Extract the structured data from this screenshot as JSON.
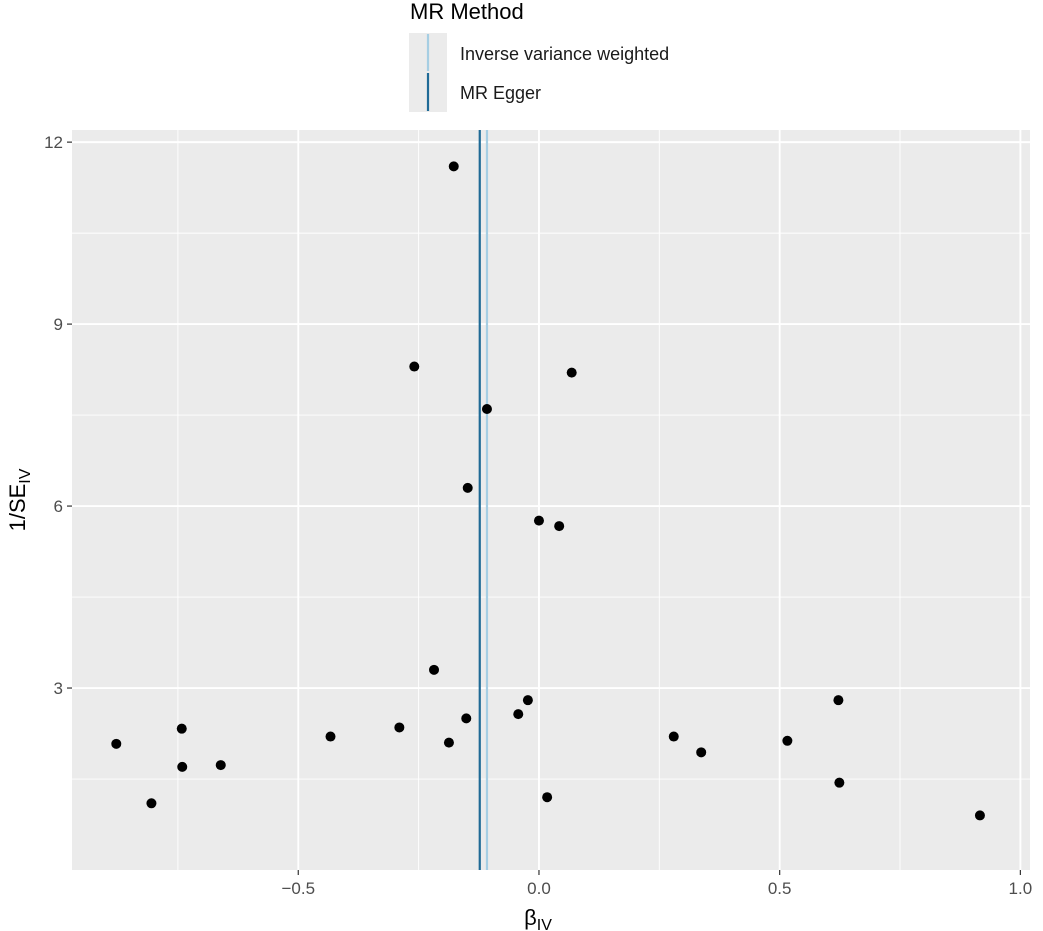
{
  "legend": {
    "title": "MR Method",
    "entries": [
      {
        "label": "Inverse variance weighted",
        "color": "#a6cee3"
      },
      {
        "label": "MR Egger",
        "color": "#1f6a96"
      }
    ]
  },
  "chart_data": {
    "type": "scatter",
    "xlabel_main": "β",
    "xlabel_sub": "IV",
    "ylabel_main": "1/SE",
    "ylabel_sub": "IV",
    "xlim": [
      -0.97,
      1.02
    ],
    "ylim": [
      0.0,
      12.2
    ],
    "xticks": [
      -0.5,
      0.0,
      0.5,
      1.0
    ],
    "xtick_labels": [
      "−0.5",
      "0.0",
      "0.5",
      "1.0"
    ],
    "yticks": [
      3,
      6,
      9,
      12
    ],
    "ytick_labels": [
      "3",
      "6",
      "9",
      "12"
    ],
    "grid": true,
    "legend_position": "top",
    "vlines": [
      {
        "name": "Inverse variance weighted",
        "x": -0.108,
        "color": "#a6cee3"
      },
      {
        "name": "MR Egger",
        "x": -0.123,
        "color": "#1f6a96"
      }
    ],
    "points": [
      {
        "x": -0.177,
        "y": 11.6
      },
      {
        "x": -0.259,
        "y": 8.3
      },
      {
        "x": 0.068,
        "y": 8.2
      },
      {
        "x": -0.108,
        "y": 7.6
      },
      {
        "x": -0.148,
        "y": 6.3
      },
      {
        "x": 0.0,
        "y": 5.76
      },
      {
        "x": 0.042,
        "y": 5.67
      },
      {
        "x": -0.218,
        "y": 3.3
      },
      {
        "x": -0.023,
        "y": 2.8
      },
      {
        "x": 0.622,
        "y": 2.8
      },
      {
        "x": -0.043,
        "y": 2.57
      },
      {
        "x": -0.151,
        "y": 2.5
      },
      {
        "x": -0.742,
        "y": 2.33
      },
      {
        "x": -0.29,
        "y": 2.35
      },
      {
        "x": -0.433,
        "y": 2.2
      },
      {
        "x": 0.28,
        "y": 2.2
      },
      {
        "x": -0.878,
        "y": 2.08
      },
      {
        "x": -0.187,
        "y": 2.1
      },
      {
        "x": 0.516,
        "y": 2.13
      },
      {
        "x": 0.337,
        "y": 1.94
      },
      {
        "x": -0.741,
        "y": 1.7
      },
      {
        "x": -0.661,
        "y": 1.73
      },
      {
        "x": 0.624,
        "y": 1.44
      },
      {
        "x": -0.805,
        "y": 1.1
      },
      {
        "x": 0.017,
        "y": 1.2
      },
      {
        "x": 0.916,
        "y": 0.9
      }
    ]
  }
}
